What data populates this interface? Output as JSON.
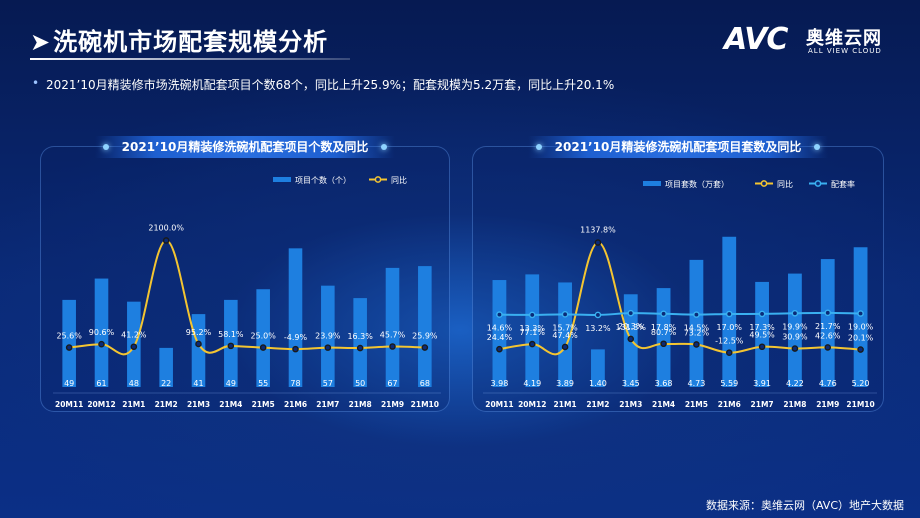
{
  "header": {
    "title": "洗碗机市场配套规模分析",
    "logo_mark": "AVC",
    "logo_cn": "奥维云网",
    "logo_en": "ALL VIEW CLOUD"
  },
  "summary": "2021’10月精装修市场洗碗机配套项目个数68个，同比上升25.9%；配套规模为5.2万套，同比上升20.1%",
  "footer": {
    "source": "数据来源：奥维云网（AVC）地产大数据"
  },
  "colors": {
    "bar": "#1e7fe0",
    "line_yoy": "#f4c531",
    "line_rate": "#3ab0f0",
    "panel_border": "#6eaaff"
  },
  "chart_data": [
    {
      "type": "bar",
      "title": "2021’10月精装修洗碗机配套项目个数及同比",
      "categories": [
        "20M11",
        "20M12",
        "21M1",
        "21M2",
        "21M3",
        "21M4",
        "21M5",
        "21M6",
        "21M7",
        "21M8",
        "21M9",
        "21M10"
      ],
      "series": [
        {
          "name": "项目个数（个）",
          "kind": "bar",
          "values": [
            49,
            61,
            48,
            22,
            41,
            49,
            55,
            78,
            57,
            50,
            67,
            68
          ],
          "labels": [
            "49",
            "61",
            "48",
            "22",
            "41",
            "49",
            "55",
            "78",
            "57",
            "50",
            "67",
            "68"
          ]
        },
        {
          "name": "同比",
          "kind": "line",
          "values": [
            25.6,
            90.6,
            41.2,
            2100.0,
            95.2,
            58.1,
            25.0,
            -4.9,
            23.9,
            16.3,
            45.7,
            25.9
          ],
          "labels": [
            "25.6%",
            "90.6%",
            "41.2%",
            "2100.0%",
            "95.2%",
            "58.1%",
            "25.0%",
            "-4.9%",
            "23.9%",
            "16.3%",
            "45.7%",
            "25.9%"
          ]
        }
      ],
      "legend": "top-right",
      "bar_ylim": [
        0,
        90
      ],
      "line_ylim": [
        -700,
        2400
      ]
    },
    {
      "type": "bar",
      "title": "2021’10月精装修洗碗机配套项目套数及同比",
      "categories": [
        "20M11",
        "20M12",
        "21M1",
        "21M2",
        "21M3",
        "21M4",
        "21M5",
        "21M6",
        "21M7",
        "21M8",
        "21M9",
        "21M10"
      ],
      "series": [
        {
          "name": "项目套数（万套）",
          "kind": "bar",
          "values": [
            3.98,
            4.19,
            3.89,
            1.4,
            3.45,
            3.68,
            4.73,
            5.59,
            3.91,
            4.22,
            4.76,
            5.2
          ],
          "labels": [
            "3.98",
            "4.19",
            "3.89",
            "1.40",
            "3.45",
            "3.68",
            "4.73",
            "5.59",
            "3.91",
            "4.22",
            "4.76",
            "5.20"
          ]
        },
        {
          "name": "同比",
          "kind": "line",
          "values": [
            24.4,
            77.1,
            47.4,
            1137.8,
            131.3,
            80.7,
            73.2,
            -12.5,
            49.5,
            30.9,
            42.6,
            20.1
          ],
          "labels": [
            "24.4%",
            "77.1%",
            "47.4%",
            "1137.8%",
            "131.3%",
            "80.7%",
            "73.2%",
            "-12.5%",
            "49.5%",
            "30.9%",
            "42.6%",
            "20.1%"
          ]
        },
        {
          "name": "配套率",
          "kind": "line",
          "values": [
            14.6,
            13.3,
            15.7,
            13.2,
            20.3,
            17.8,
            14.5,
            17.0,
            17.3,
            19.9,
            21.7,
            19.0
          ],
          "labels": [
            "14.6%",
            "13.3%",
            "15.7%",
            "13.2%",
            "20.3%",
            "17.8%",
            "14.5%",
            "17.0%",
            "17.3%",
            "19.9%",
            "21.7%",
            "19.0%"
          ]
        }
      ],
      "legend": "top-right",
      "bar_ylim": [
        0,
        6.4
      ],
      "line_ylim": [
        -350,
        1300
      ]
    }
  ]
}
